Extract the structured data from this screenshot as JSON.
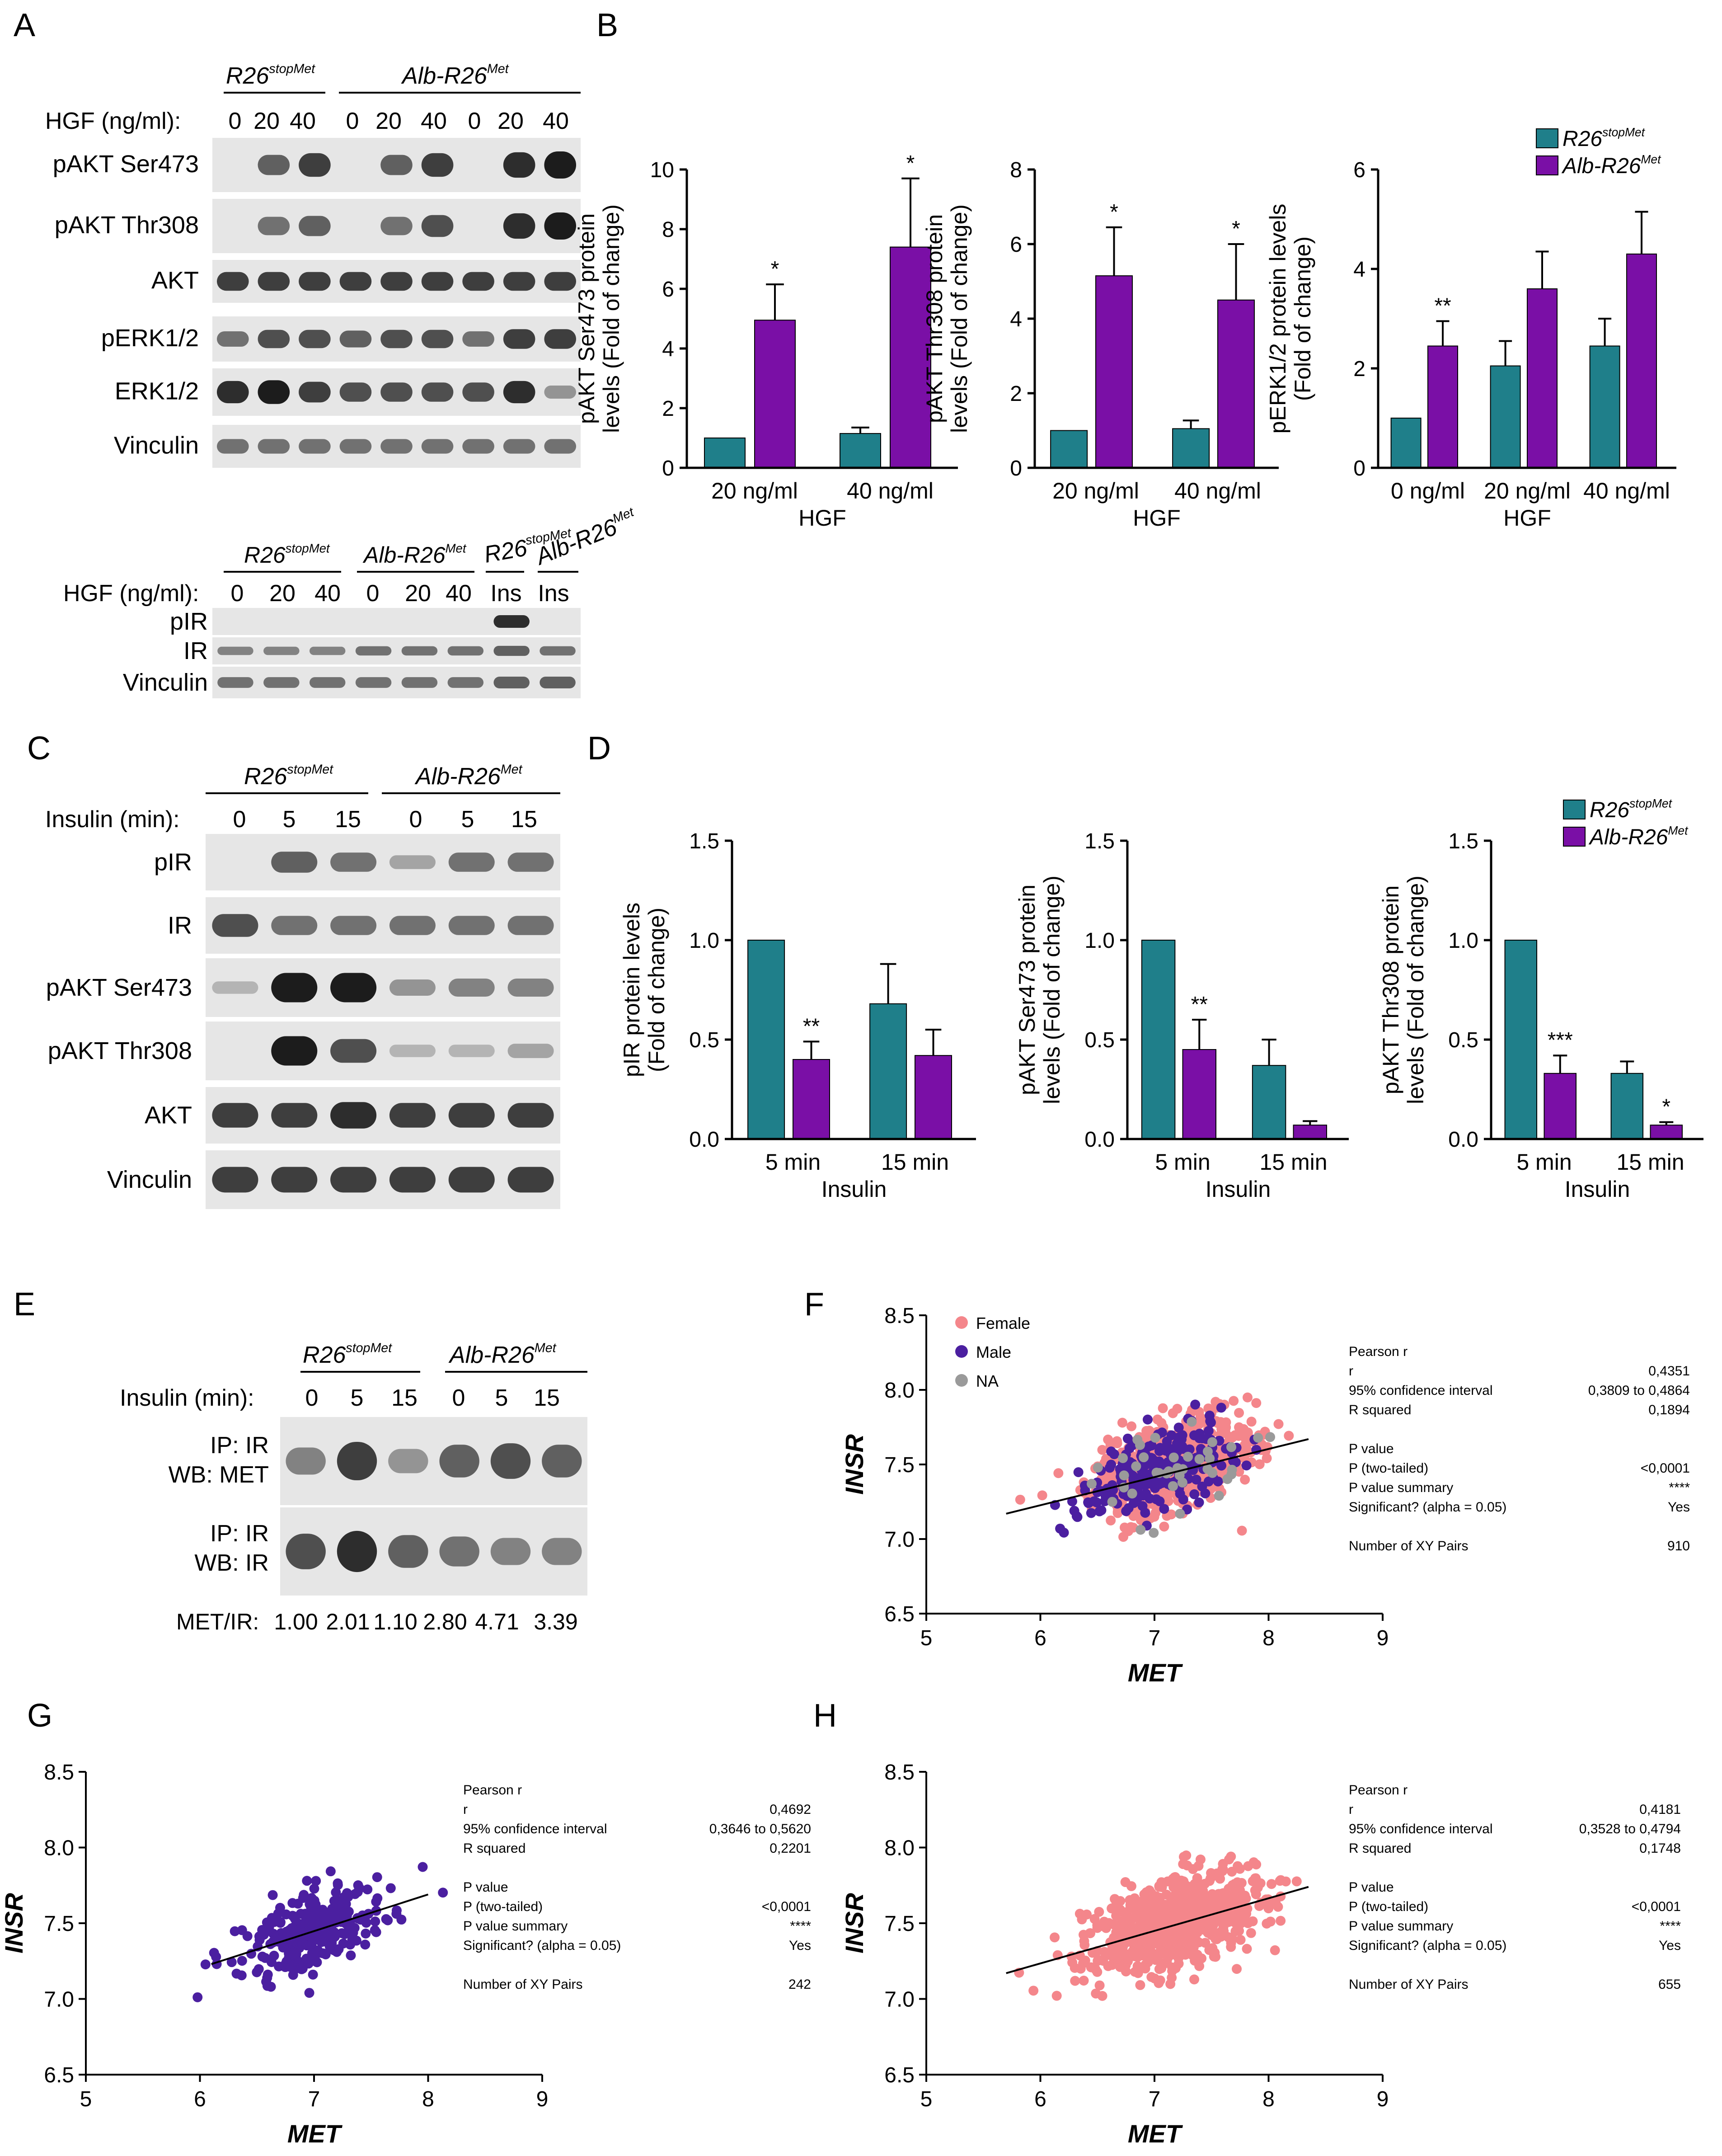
{
  "panels": {
    "A": "A",
    "B": "B",
    "C": "C",
    "D": "D",
    "E": "E",
    "F": "F",
    "G": "G",
    "H": "H"
  },
  "colors": {
    "teal": "#1f7f8a",
    "purple": "#7a0fa6",
    "male": "#4b1fa0",
    "female": "#f4868b",
    "na": "#9a9a9a",
    "blot_bg": "#e6e6e6"
  },
  "genotypes": {
    "r26_base": "R26",
    "r26_sup": "stopMet",
    "alb_base": "Alb-R26",
    "alb_sup": "Met"
  },
  "panel_a": {
    "hgf_label": "HGF (ng/ml):",
    "lanes": [
      "0",
      "20",
      "40",
      "0",
      "20",
      "40",
      "0",
      "20",
      "40"
    ],
    "rows": [
      "pAKT Ser473",
      "pAKT Thr308",
      "AKT",
      "pERK1/2",
      "ERK1/2",
      "Vinculin"
    ],
    "ir_hgf_label": "HGF (ng/ml):",
    "ir_lanes": [
      "0",
      "20",
      "40",
      "0",
      "20",
      "40",
      "Ins",
      "Ins"
    ],
    "ir_rows": [
      "pIR",
      "IR",
      "Vinculin"
    ]
  },
  "panel_c": {
    "insulin_label": "Insulin (min):",
    "lanes": [
      "0",
      "5",
      "15",
      "0",
      "5",
      "15"
    ],
    "rows": [
      "pIR",
      "IR",
      "pAKT Ser473",
      "pAKT Thr308",
      "AKT",
      "Vinculin"
    ]
  },
  "panel_e": {
    "insulin_label": "Insulin (min):",
    "lanes": [
      "0",
      "5",
      "15",
      "0",
      "5",
      "15"
    ],
    "ip1": [
      "IP: IR",
      "WB: MET"
    ],
    "ip2": [
      "IP: IR",
      "WB: IR"
    ],
    "ratio_label": "MET/IR:",
    "ratios": [
      "1.00",
      "2.01",
      "1.10",
      "2.80",
      "4.71",
      "3.39"
    ]
  },
  "chart_data": [
    {
      "id": "B1",
      "type": "bar",
      "categories": [
        "20 ng/ml",
        "40 ng/ml"
      ],
      "xlabel": "HGF",
      "ylabel": [
        "pAKT Ser473 protein",
        "levels (Fold of change)"
      ],
      "ylim": [
        0,
        10
      ],
      "yticks": [
        "0",
        "2",
        "4",
        "6",
        "8",
        "10"
      ],
      "series": [
        {
          "name": "R26stopMet",
          "values": [
            1.0,
            1.15
          ],
          "err": [
            0,
            0.2
          ]
        },
        {
          "name": "Alb-R26Met",
          "values": [
            4.95,
            7.4
          ],
          "err": [
            1.2,
            2.3
          ]
        }
      ],
      "sig": [
        "*",
        "*"
      ]
    },
    {
      "id": "B2",
      "type": "bar",
      "categories": [
        "20 ng/ml",
        "40 ng/ml"
      ],
      "xlabel": "HGF",
      "ylabel": [
        "pAKT Thr308 protein",
        "levels (Fold of change)"
      ],
      "ylim": [
        0,
        8
      ],
      "yticks": [
        "0",
        "2",
        "4",
        "6",
        "8"
      ],
      "series": [
        {
          "name": "R26stopMet",
          "values": [
            1.0,
            1.05
          ],
          "err": [
            0,
            0.22
          ]
        },
        {
          "name": "Alb-R26Met",
          "values": [
            5.15,
            4.5
          ],
          "err": [
            1.3,
            1.5
          ]
        }
      ],
      "sig": [
        "*",
        "*"
      ]
    },
    {
      "id": "B3",
      "type": "bar",
      "categories": [
        "0 ng/ml",
        "20 ng/ml",
        "40 ng/ml"
      ],
      "xlabel": "HGF",
      "ylabel": [
        "pERK1/2 protein levels",
        "(Fold of change)"
      ],
      "ylim": [
        0,
        6
      ],
      "yticks": [
        "0",
        "2",
        "4",
        "6"
      ],
      "series": [
        {
          "name": "R26stopMet",
          "values": [
            1.0,
            2.05,
            2.45
          ],
          "err": [
            0,
            0.5,
            0.55
          ]
        },
        {
          "name": "Alb-R26Met",
          "values": [
            2.45,
            3.6,
            4.3
          ],
          "err": [
            0.5,
            0.75,
            0.85
          ]
        }
      ],
      "sig": [
        "**",
        "",
        ""
      ],
      "legend": true
    },
    {
      "id": "D1",
      "type": "bar",
      "categories": [
        "5 min",
        "15 min"
      ],
      "xlabel": "Insulin",
      "ylabel": [
        "pIR protein levels",
        "(Fold of change)"
      ],
      "ylim": [
        0,
        1.5
      ],
      "yticks": [
        "0.0",
        "0.5",
        "1.0",
        "1.5"
      ],
      "series": [
        {
          "name": "R26stopMet",
          "values": [
            1.0,
            0.68
          ],
          "err": [
            0,
            0.2
          ]
        },
        {
          "name": "Alb-R26Met",
          "values": [
            0.4,
            0.42
          ],
          "err": [
            0.09,
            0.13
          ]
        }
      ],
      "sig": [
        "**",
        ""
      ]
    },
    {
      "id": "D2",
      "type": "bar",
      "categories": [
        "5 min",
        "15 min"
      ],
      "xlabel": "Insulin",
      "ylabel": [
        "pAKT Ser473 protein",
        "levels (Fold of change)"
      ],
      "ylim": [
        0,
        1.5
      ],
      "yticks": [
        "0.0",
        "0.5",
        "1.0",
        "1.5"
      ],
      "series": [
        {
          "name": "R26stopMet",
          "values": [
            1.0,
            0.37
          ],
          "err": [
            0,
            0.13
          ]
        },
        {
          "name": "Alb-R26Met",
          "values": [
            0.45,
            0.07
          ],
          "err": [
            0.15,
            0.02
          ]
        }
      ],
      "sig": [
        "**",
        ""
      ]
    },
    {
      "id": "D3",
      "type": "bar",
      "categories": [
        "5 min",
        "15 min"
      ],
      "xlabel": "Insulin",
      "ylabel": [
        "pAKT Thr308 protein",
        "levels (Fold of change)"
      ],
      "ylim": [
        0,
        1.5
      ],
      "yticks": [
        "0.0",
        "0.5",
        "1.0",
        "1.5"
      ],
      "series": [
        {
          "name": "R26stopMet",
          "values": [
            1.0,
            0.33
          ],
          "err": [
            0,
            0.06
          ]
        },
        {
          "name": "Alb-R26Met",
          "values": [
            0.33,
            0.07
          ],
          "err": [
            0.09,
            0.015
          ]
        }
      ],
      "sig": [
        "***",
        "*"
      ],
      "legend": true
    },
    {
      "id": "F",
      "type": "scatter",
      "xlabel": "MET",
      "ylabel": "INSR",
      "xlim": [
        5,
        9
      ],
      "ylim": [
        6.5,
        8.5
      ],
      "xticks": [
        "5",
        "6",
        "7",
        "8",
        "9"
      ],
      "yticks": [
        "6.5",
        "7.0",
        "7.5",
        "8.0",
        "8.5"
      ],
      "legend": [
        "Female",
        "Male",
        "NA"
      ],
      "fit": [
        [
          5.7,
          7.17
        ],
        [
          8.35,
          7.67
        ]
      ],
      "stats": [
        [
          "Pearson r",
          ""
        ],
        [
          "r",
          "0,4351"
        ],
        [
          "95% confidence interval",
          "0,3809 to 0,4864"
        ],
        [
          "R squared",
          "0,1894"
        ],
        [
          "",
          ""
        ],
        [
          "P value",
          ""
        ],
        [
          "P (two-tailed)",
          "<0,0001"
        ],
        [
          "P value summary",
          "****"
        ],
        [
          "Significant? (alpha = 0.05)",
          "Yes"
        ],
        [
          "",
          ""
        ],
        [
          "Number of XY Pairs",
          "910"
        ]
      ]
    },
    {
      "id": "G",
      "type": "scatter",
      "xlabel": "MET",
      "ylabel": "INSR",
      "xlim": [
        5,
        9
      ],
      "ylim": [
        6.5,
        8.5
      ],
      "xticks": [
        "5",
        "6",
        "7",
        "8",
        "9"
      ],
      "yticks": [
        "6.5",
        "7.0",
        "7.5",
        "8.0",
        "8.5"
      ],
      "fit": [
        [
          6.1,
          7.23
        ],
        [
          8.0,
          7.69
        ]
      ],
      "stats": [
        [
          "Pearson r",
          ""
        ],
        [
          "r",
          "0,4692"
        ],
        [
          "95% confidence interval",
          "0,3646 to 0,5620"
        ],
        [
          "R squared",
          "0,2201"
        ],
        [
          "",
          ""
        ],
        [
          "P value",
          ""
        ],
        [
          "P (two-tailed)",
          "<0,0001"
        ],
        [
          "P value summary",
          "****"
        ],
        [
          "Significant? (alpha = 0.05)",
          "Yes"
        ],
        [
          "",
          ""
        ],
        [
          "Number of XY Pairs",
          "242"
        ]
      ]
    },
    {
      "id": "H",
      "type": "scatter",
      "xlabel": "MET",
      "ylabel": "INSR",
      "xlim": [
        5,
        9
      ],
      "ylim": [
        6.5,
        8.5
      ],
      "xticks": [
        "5",
        "6",
        "7",
        "8",
        "9"
      ],
      "yticks": [
        "6.5",
        "7.0",
        "7.5",
        "8.0",
        "8.5"
      ],
      "fit": [
        [
          5.7,
          7.17
        ],
        [
          8.35,
          7.74
        ]
      ],
      "stats": [
        [
          "Pearson r",
          ""
        ],
        [
          "r",
          "0,4181"
        ],
        [
          "95% confidence interval",
          "0,3528 to 0,4794"
        ],
        [
          "R squared",
          "0,1748"
        ],
        [
          "",
          ""
        ],
        [
          "P value",
          ""
        ],
        [
          "P (two-tailed)",
          "<0,0001"
        ],
        [
          "P value summary",
          "****"
        ],
        [
          "Significant? (alpha = 0.05)",
          "Yes"
        ],
        [
          "",
          ""
        ],
        [
          "Number of XY Pairs",
          "655"
        ]
      ]
    }
  ]
}
